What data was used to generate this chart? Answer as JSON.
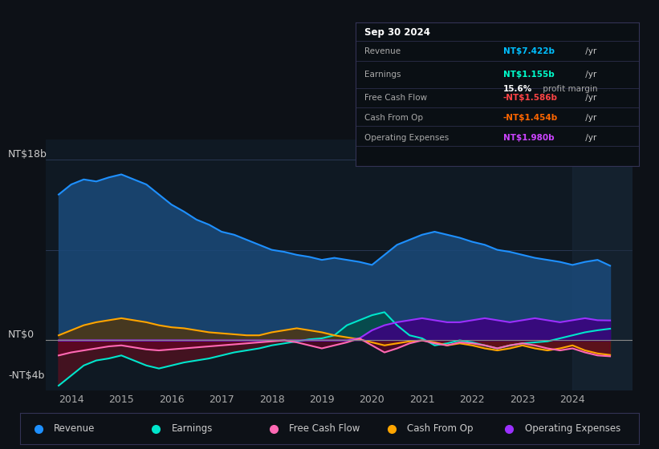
{
  "bg_color": "#0d1117",
  "plot_bg_color": "#0f1923",
  "ylabel_top": "NT$18b",
  "ylabel_zero": "NT$0",
  "ylabel_neg": "-NT$4b",
  "ylim": [
    -5,
    20
  ],
  "xlim": [
    2013.5,
    2025.2
  ],
  "xticks": [
    2014,
    2015,
    2016,
    2017,
    2018,
    2019,
    2020,
    2021,
    2022,
    2023,
    2024
  ],
  "info_box": {
    "date": "Sep 30 2024",
    "revenue_label": "Revenue",
    "revenue_value": "NT$7.422b",
    "revenue_suffix": " /yr",
    "revenue_color": "#00bfff",
    "earnings_label": "Earnings",
    "earnings_value": "NT$1.155b",
    "earnings_suffix": " /yr",
    "earnings_color": "#00ffcc",
    "margin_value": "15.6%",
    "margin_text": " profit margin",
    "fcf_label": "Free Cash Flow",
    "fcf_value": "-NT$1.586b",
    "fcf_suffix": " /yr",
    "fcf_color": "#ff4444",
    "cashop_label": "Cash From Op",
    "cashop_value": "-NT$1.454b",
    "cashop_suffix": " /yr",
    "cashop_color": "#ff6600",
    "opex_label": "Operating Expenses",
    "opex_value": "NT$1.980b",
    "opex_suffix": " /yr",
    "opex_color": "#cc44ff"
  },
  "legend": [
    {
      "label": "Revenue",
      "color": "#1e90ff"
    },
    {
      "label": "Earnings",
      "color": "#00e5cc"
    },
    {
      "label": "Free Cash Flow",
      "color": "#ff69b4"
    },
    {
      "label": "Cash From Op",
      "color": "#ffa500"
    },
    {
      "label": "Operating Expenses",
      "color": "#9b30ff"
    }
  ],
  "revenue": {
    "color": "#1e90ff",
    "fill_color": "#1a4a7a",
    "data_x": [
      2013.75,
      2014.0,
      2014.25,
      2014.5,
      2014.75,
      2015.0,
      2015.25,
      2015.5,
      2015.75,
      2016.0,
      2016.25,
      2016.5,
      2016.75,
      2017.0,
      2017.25,
      2017.5,
      2017.75,
      2018.0,
      2018.25,
      2018.5,
      2018.75,
      2019.0,
      2019.25,
      2019.5,
      2019.75,
      2020.0,
      2020.25,
      2020.5,
      2020.75,
      2021.0,
      2021.25,
      2021.5,
      2021.75,
      2022.0,
      2022.25,
      2022.5,
      2022.75,
      2023.0,
      2023.25,
      2023.5,
      2023.75,
      2024.0,
      2024.25,
      2024.5,
      2024.75
    ],
    "data_y": [
      14.5,
      15.5,
      16.0,
      15.8,
      16.2,
      16.5,
      16.0,
      15.5,
      14.5,
      13.5,
      12.8,
      12.0,
      11.5,
      10.8,
      10.5,
      10.0,
      9.5,
      9.0,
      8.8,
      8.5,
      8.3,
      8.0,
      8.2,
      8.0,
      7.8,
      7.5,
      8.5,
      9.5,
      10.0,
      10.5,
      10.8,
      10.5,
      10.2,
      9.8,
      9.5,
      9.0,
      8.8,
      8.5,
      8.2,
      8.0,
      7.8,
      7.5,
      7.8,
      8.0,
      7.422
    ]
  },
  "earnings": {
    "color": "#00e5cc",
    "fill_neg_color": "#5a1020",
    "fill_pos_color": "#005040",
    "data_x": [
      2013.75,
      2014.0,
      2014.25,
      2014.5,
      2014.75,
      2015.0,
      2015.25,
      2015.5,
      2015.75,
      2016.0,
      2016.25,
      2016.5,
      2016.75,
      2017.0,
      2017.25,
      2017.5,
      2017.75,
      2018.0,
      2018.25,
      2018.5,
      2018.75,
      2019.0,
      2019.25,
      2019.5,
      2019.75,
      2020.0,
      2020.25,
      2020.5,
      2020.75,
      2021.0,
      2021.25,
      2021.5,
      2021.75,
      2022.0,
      2022.25,
      2022.5,
      2022.75,
      2023.0,
      2023.25,
      2023.5,
      2023.75,
      2024.0,
      2024.25,
      2024.5,
      2024.75
    ],
    "data_y": [
      -4.5,
      -3.5,
      -2.5,
      -2.0,
      -1.8,
      -1.5,
      -2.0,
      -2.5,
      -2.8,
      -2.5,
      -2.2,
      -2.0,
      -1.8,
      -1.5,
      -1.2,
      -1.0,
      -0.8,
      -0.5,
      -0.3,
      -0.1,
      0.1,
      0.2,
      0.5,
      1.5,
      2.0,
      2.5,
      2.8,
      1.5,
      0.5,
      0.2,
      -0.5,
      -0.3,
      0.0,
      -0.2,
      -0.5,
      -0.8,
      -0.5,
      -0.3,
      -0.2,
      -0.1,
      0.2,
      0.5,
      0.8,
      1.0,
      1.155
    ]
  },
  "fcf": {
    "color": "#ff69b4",
    "fill_neg_color": "#6a0025",
    "fill_pos_color": "#005040",
    "data_x": [
      2013.75,
      2014.0,
      2014.25,
      2014.5,
      2014.75,
      2015.0,
      2015.25,
      2015.5,
      2015.75,
      2016.0,
      2016.25,
      2016.5,
      2016.75,
      2017.0,
      2017.25,
      2017.5,
      2017.75,
      2018.0,
      2018.25,
      2018.5,
      2018.75,
      2019.0,
      2019.25,
      2019.5,
      2019.75,
      2020.0,
      2020.25,
      2020.5,
      2020.75,
      2021.0,
      2021.25,
      2021.5,
      2021.75,
      2022.0,
      2022.25,
      2022.5,
      2022.75,
      2023.0,
      2023.25,
      2023.5,
      2023.75,
      2024.0,
      2024.25,
      2024.5,
      2024.75
    ],
    "data_y": [
      -1.5,
      -1.2,
      -1.0,
      -0.8,
      -0.6,
      -0.5,
      -0.7,
      -0.9,
      -1.0,
      -0.9,
      -0.8,
      -0.7,
      -0.6,
      -0.5,
      -0.4,
      -0.3,
      -0.2,
      -0.1,
      0.0,
      -0.2,
      -0.5,
      -0.8,
      -0.5,
      -0.2,
      0.2,
      -0.5,
      -1.2,
      -0.8,
      -0.3,
      0.0,
      -0.3,
      -0.5,
      -0.2,
      -0.3,
      -0.5,
      -0.8,
      -0.5,
      -0.3,
      -0.5,
      -0.8,
      -1.0,
      -0.8,
      -1.2,
      -1.5,
      -1.586
    ]
  },
  "cashop": {
    "color": "#ffa500",
    "fill_color": "#5a3500",
    "data_x": [
      2013.75,
      2014.0,
      2014.25,
      2014.5,
      2014.75,
      2015.0,
      2015.25,
      2015.5,
      2015.75,
      2016.0,
      2016.25,
      2016.5,
      2016.75,
      2017.0,
      2017.25,
      2017.5,
      2017.75,
      2018.0,
      2018.25,
      2018.5,
      2018.75,
      2019.0,
      2019.25,
      2019.5,
      2019.75,
      2020.0,
      2020.25,
      2020.5,
      2020.75,
      2021.0,
      2021.25,
      2021.5,
      2021.75,
      2022.0,
      2022.25,
      2022.5,
      2022.75,
      2023.0,
      2023.25,
      2023.5,
      2023.75,
      2024.0,
      2024.25,
      2024.5,
      2024.75
    ],
    "data_y": [
      0.5,
      1.0,
      1.5,
      1.8,
      2.0,
      2.2,
      2.0,
      1.8,
      1.5,
      1.3,
      1.2,
      1.0,
      0.8,
      0.7,
      0.6,
      0.5,
      0.5,
      0.8,
      1.0,
      1.2,
      1.0,
      0.8,
      0.5,
      0.3,
      0.1,
      -0.2,
      -0.5,
      -0.3,
      -0.1,
      0.0,
      -0.2,
      -0.5,
      -0.3,
      -0.5,
      -0.8,
      -1.0,
      -0.8,
      -0.5,
      -0.8,
      -1.0,
      -0.8,
      -0.5,
      -1.0,
      -1.3,
      -1.454
    ]
  },
  "opex": {
    "color": "#9b30ff",
    "fill_color": "#3d0080",
    "data_x": [
      2013.75,
      2014.0,
      2014.25,
      2014.5,
      2014.75,
      2015.0,
      2015.25,
      2015.5,
      2015.75,
      2016.0,
      2016.25,
      2016.5,
      2016.75,
      2017.0,
      2017.25,
      2017.5,
      2017.75,
      2018.0,
      2018.25,
      2018.5,
      2018.75,
      2019.0,
      2019.25,
      2019.5,
      2019.75,
      2020.0,
      2020.25,
      2020.5,
      2020.75,
      2021.0,
      2021.25,
      2021.5,
      2021.75,
      2022.0,
      2022.25,
      2022.5,
      2022.75,
      2023.0,
      2023.25,
      2023.5,
      2023.75,
      2024.0,
      2024.25,
      2024.5,
      2024.75
    ],
    "data_y": [
      0.0,
      0.0,
      0.0,
      0.0,
      0.0,
      0.0,
      0.0,
      0.0,
      0.0,
      0.0,
      0.0,
      0.0,
      0.0,
      0.0,
      0.0,
      0.0,
      0.0,
      0.0,
      0.0,
      0.0,
      0.0,
      0.0,
      0.0,
      0.0,
      0.2,
      1.0,
      1.5,
      1.8,
      2.0,
      2.2,
      2.0,
      1.8,
      1.8,
      2.0,
      2.2,
      2.0,
      1.8,
      2.0,
      2.2,
      2.0,
      1.8,
      2.0,
      2.2,
      2.0,
      1.98
    ]
  }
}
